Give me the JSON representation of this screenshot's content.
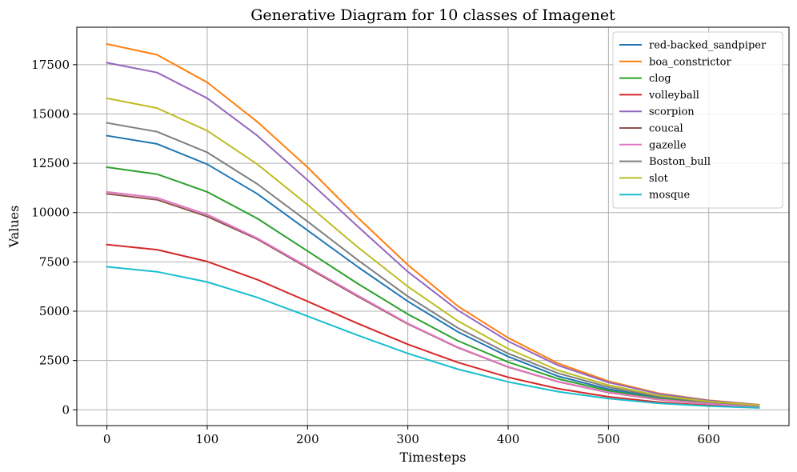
{
  "chart_data": {
    "type": "line",
    "title": "Generative Diagram for 10 classes of Imagenet",
    "xlabel": "Timesteps",
    "ylabel": "Values",
    "xlim": [
      -30,
      680
    ],
    "ylim": [
      -800,
      19400
    ],
    "xticks": [
      0,
      100,
      200,
      300,
      400,
      500,
      600
    ],
    "yticks": [
      0,
      2500,
      5000,
      7500,
      10000,
      12500,
      15000,
      17500
    ],
    "grid": true,
    "legend_position": "top-right",
    "x": [
      0,
      50,
      100,
      150,
      200,
      250,
      300,
      350,
      400,
      450,
      500,
      550,
      600,
      650
    ],
    "series": [
      {
        "name": "red-backed_sandpiper",
        "color": "#1f77b4",
        "values": [
          13900,
          13480,
          12450,
          10950,
          9100,
          7250,
          5500,
          3950,
          2700,
          1700,
          1050,
          620,
          360,
          200
        ]
      },
      {
        "name": "boa_constrictor",
        "color": "#ff7f0e",
        "values": [
          18550,
          18000,
          16600,
          14600,
          12300,
          9750,
          7350,
          5250,
          3650,
          2350,
          1450,
          840,
          480,
          260
        ]
      },
      {
        "name": "clog",
        "color": "#2ca02c",
        "values": [
          12300,
          11950,
          11050,
          9700,
          8050,
          6400,
          4850,
          3500,
          2420,
          1570,
          970,
          570,
          330,
          180
        ]
      },
      {
        "name": "volleyball",
        "color": "#d62728",
        "values": [
          8380,
          8120,
          7520,
          6600,
          5500,
          4380,
          3320,
          2400,
          1650,
          1070,
          660,
          390,
          220,
          120
        ]
      },
      {
        "name": "scorpion",
        "color": "#9467bd",
        "values": [
          17600,
          17100,
          15800,
          13900,
          11650,
          9300,
          7000,
          5050,
          3480,
          2250,
          1390,
          810,
          470,
          250
        ]
      },
      {
        "name": "coucal",
        "color": "#8c564b",
        "values": [
          10950,
          10650,
          9800,
          8650,
          7200,
          5750,
          4350,
          3150,
          2170,
          1420,
          880,
          520,
          300,
          160
        ]
      },
      {
        "name": "gazelle",
        "color": "#e377c2",
        "values": [
          11050,
          10750,
          9900,
          8700,
          7250,
          5800,
          4380,
          3170,
          2180,
          1430,
          890,
          525,
          305,
          165
        ]
      },
      {
        "name": "Boston_bull",
        "color": "#7f7f7f",
        "values": [
          14550,
          14100,
          13050,
          11450,
          9550,
          7600,
          5750,
          4150,
          2860,
          1850,
          1150,
          670,
          390,
          210
        ]
      },
      {
        "name": "slot",
        "color": "#bcbd22",
        "values": [
          15800,
          15300,
          14150,
          12450,
          10400,
          8250,
          6250,
          4500,
          3100,
          2000,
          1250,
          730,
          420,
          230
        ]
      },
      {
        "name": "mosque",
        "color": "#17becf",
        "values": [
          7250,
          7000,
          6480,
          5700,
          4750,
          3780,
          2860,
          2060,
          1420,
          920,
          570,
          330,
          190,
          100
        ]
      }
    ]
  }
}
